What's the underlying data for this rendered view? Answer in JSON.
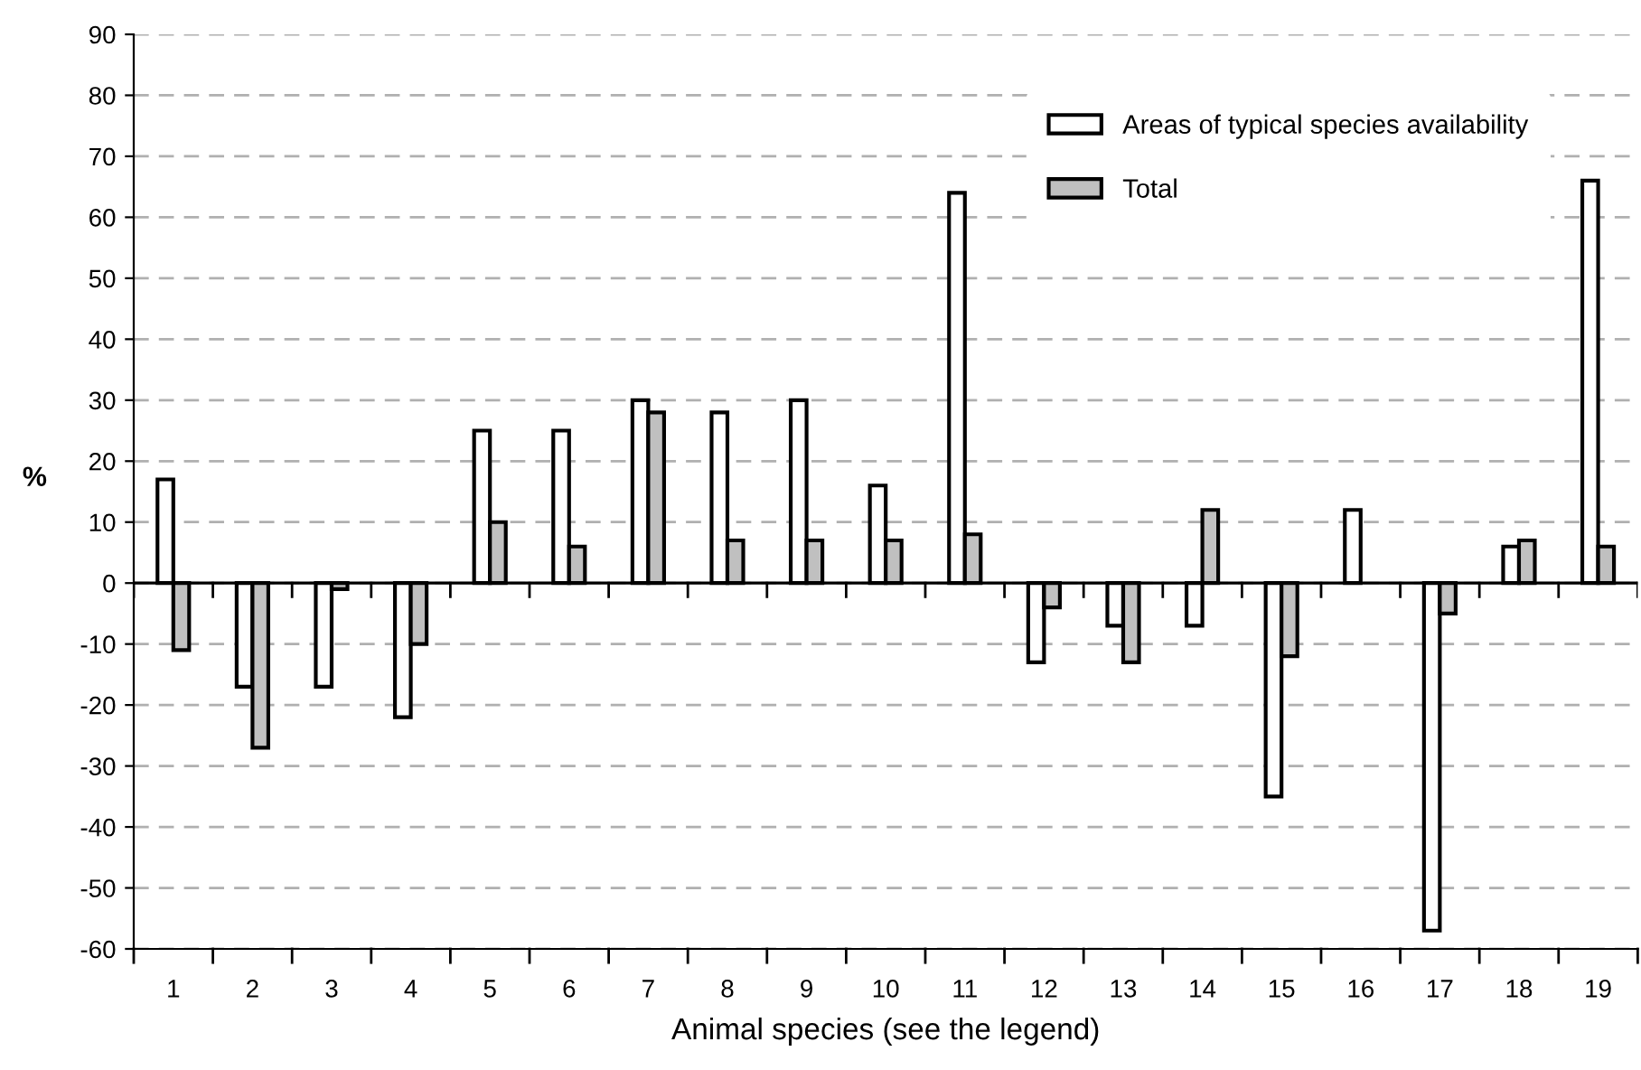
{
  "chart_data": {
    "type": "bar",
    "xlabel": "Animal species (see the legend)",
    "ylabel": "%",
    "categories": [
      "1",
      "2",
      "3",
      "4",
      "5",
      "6",
      "7",
      "8",
      "9",
      "10",
      "11",
      "12",
      "13",
      "14",
      "15",
      "16",
      "17",
      "18",
      "19"
    ],
    "series": [
      {
        "name": "Areas of typical species availability",
        "color": "#ffffff",
        "values": [
          17,
          -17,
          -17,
          -22,
          25,
          25,
          30,
          28,
          30,
          16,
          64,
          -13,
          -7,
          -7,
          -35,
          12,
          -57,
          6,
          66
        ]
      },
      {
        "name": "Total",
        "color": "#c0c0c0",
        "values": [
          -11,
          -27,
          -1,
          -10,
          10,
          6,
          28,
          7,
          7,
          7,
          8,
          -4,
          -13,
          12,
          -12,
          null,
          -5,
          7,
          6
        ]
      }
    ],
    "ylim": [
      -60,
      90
    ],
    "yticks": [
      -60,
      -50,
      -40,
      -30,
      -20,
      -10,
      0,
      10,
      20,
      30,
      40,
      50,
      60,
      70,
      80,
      90
    ],
    "grid": "y",
    "legend": "top right",
    "ref_lines": [
      {
        "axis": "y",
        "value": 0,
        "color": "#000000",
        "line_style": "solid"
      }
    ]
  }
}
